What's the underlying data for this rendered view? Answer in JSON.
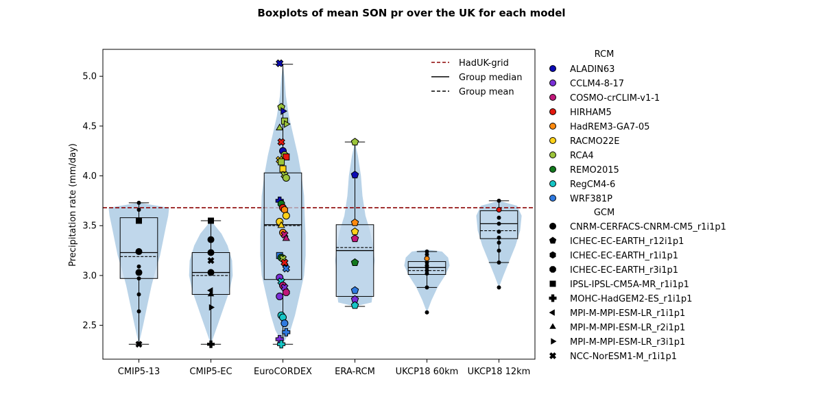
{
  "title": "Boxplots of mean SON pr over the UK for each model",
  "colors": {
    "violin": "#b9d3e8",
    "box": "#c3d9ec",
    "reference": "#8b0000",
    "rcm": {
      "ALADIN63": "#0b0bb3",
      "CCLM4-8-17": "#7a2fd6",
      "COSMO-crCLIM-v1-1": "#c0187a",
      "HIRHAM5": "#e3180f",
      "HadREM3-GA7-05": "#ff8a0e",
      "RACMO22E": "#ffd21a",
      "RCA4": "#9cc43b",
      "REMO2015": "#13781e",
      "RegCM4-6": "#16c6c6",
      "WRF381P": "#2f7ae0"
    }
  },
  "legend_lines": [
    {
      "label": "HadUK-grid",
      "style": "dashed",
      "color": "#8b0000"
    },
    {
      "label": "Group median",
      "style": "solid",
      "color": "#000000"
    },
    {
      "label": "Group mean",
      "style": "dashed",
      "color": "#000000"
    }
  ],
  "legend_rcm": {
    "title": "RCM",
    "items": [
      "ALADIN63",
      "CCLM4-8-17",
      "COSMO-crCLIM-v1-1",
      "HIRHAM5",
      "HadREM3-GA7-05",
      "RACMO22E",
      "RCA4",
      "REMO2015",
      "RegCM4-6",
      "WRF381P"
    ]
  },
  "legend_gcm": {
    "title": "GCM",
    "items": [
      {
        "label": "CNRM-CERFACS-CNRM-CM5_r1i1p1",
        "marker": "circle"
      },
      {
        "label": "ICHEC-EC-EARTH_r12i1p1",
        "marker": "pentagon"
      },
      {
        "label": "ICHEC-EC-EARTH_r1i1p1",
        "marker": "hexagon"
      },
      {
        "label": "ICHEC-EC-EARTH_r3i1p1",
        "marker": "octagon"
      },
      {
        "label": "IPSL-IPSL-CM5A-MR_r1i1p1",
        "marker": "square"
      },
      {
        "label": "MOHC-HadGEM2-ES_r1i1p1",
        "marker": "plus"
      },
      {
        "label": "MPI-M-MPI-ESM-LR_r1i1p1",
        "marker": "tri-left"
      },
      {
        "label": "MPI-M-MPI-ESM-LR_r2i1p1",
        "marker": "tri-up"
      },
      {
        "label": "MPI-M-MPI-ESM-LR_r3i1p1",
        "marker": "tri-right"
      },
      {
        "label": "NCC-NorESM1-M_r1i1p1",
        "marker": "x"
      }
    ]
  },
  "chart_data": {
    "type": "boxplot",
    "title": "Boxplots of mean SON pr over the UK for each model",
    "ylabel": "Precipitation rate (mm/day)",
    "xlabel": "",
    "ylim": [
      2.16,
      5.27
    ],
    "yticks": [
      2.5,
      3.0,
      3.5,
      4.0,
      4.5,
      5.0
    ],
    "ytick_labels": [
      "2.5",
      "3.0",
      "3.5",
      "4.0",
      "4.5",
      "5.0"
    ],
    "grid": false,
    "reference": {
      "name": "HadUK-grid",
      "value": 3.68
    },
    "categories": [
      "CMIP5-13",
      "CMIP5-EC",
      "EuroCORDEX",
      "ERA-RCM",
      "UKCP18 60km",
      "UKCP18 12km"
    ],
    "groups": [
      {
        "name": "CMIP5-13",
        "stats": {
          "min": 2.31,
          "q1": 2.97,
          "median": 3.23,
          "mean": 3.19,
          "q3": 3.58,
          "max": 3.73
        },
        "violin": [
          [
            2.31,
            0.0
          ],
          [
            2.5,
            0.14
          ],
          [
            2.7,
            0.28
          ],
          [
            2.9,
            0.42
          ],
          [
            3.05,
            0.55
          ],
          [
            3.2,
            0.7
          ],
          [
            3.35,
            0.8
          ],
          [
            3.5,
            0.9
          ],
          [
            3.6,
            0.97
          ],
          [
            3.68,
            1.0
          ],
          [
            3.73,
            0.0
          ]
        ],
        "points": [
          {
            "y": 3.73,
            "rcm": null,
            "gcm": "circle-small"
          },
          {
            "y": 3.66,
            "rcm": null,
            "gcm": "circle-small"
          },
          {
            "y": 3.55,
            "rcm": null,
            "gcm": "square"
          },
          {
            "y": 3.24,
            "rcm": null,
            "gcm": "circle"
          },
          {
            "y": 3.09,
            "rcm": null,
            "gcm": "circle-small"
          },
          {
            "y": 3.03,
            "rcm": null,
            "gcm": "circle"
          },
          {
            "y": 2.97,
            "rcm": null,
            "gcm": "circle-small"
          },
          {
            "y": 2.81,
            "rcm": null,
            "gcm": "circle-small"
          },
          {
            "y": 2.64,
            "rcm": null,
            "gcm": "circle-small"
          },
          {
            "y": 2.31,
            "rcm": null,
            "gcm": "x"
          }
        ]
      },
      {
        "name": "CMIP5-EC",
        "stats": {
          "min": 2.31,
          "q1": 2.81,
          "median": 3.03,
          "mean": 3.0,
          "q3": 3.23,
          "max": 3.55
        },
        "violin": [
          [
            2.31,
            0.0
          ],
          [
            2.5,
            0.22
          ],
          [
            2.7,
            0.45
          ],
          [
            2.85,
            0.62
          ],
          [
            3.0,
            0.72
          ],
          [
            3.15,
            0.7
          ],
          [
            3.3,
            0.55
          ],
          [
            3.42,
            0.35
          ],
          [
            3.55,
            0.0
          ]
        ],
        "points": [
          {
            "y": 3.55,
            "rcm": null,
            "gcm": "square"
          },
          {
            "y": 3.36,
            "rcm": null,
            "gcm": "circle"
          },
          {
            "y": 3.23,
            "rcm": null,
            "gcm": "circle"
          },
          {
            "y": 3.15,
            "rcm": null,
            "gcm": "x"
          },
          {
            "y": 3.03,
            "rcm": null,
            "gcm": "circle"
          },
          {
            "y": 2.85,
            "rcm": null,
            "gcm": "tri-left"
          },
          {
            "y": 2.81,
            "rcm": null,
            "gcm": "tri-up"
          },
          {
            "y": 2.68,
            "rcm": null,
            "gcm": "tri-right"
          },
          {
            "y": 2.31,
            "rcm": null,
            "gcm": "plus"
          }
        ]
      },
      {
        "name": "EuroCORDEX",
        "stats": {
          "min": 2.31,
          "q1": 2.96,
          "median": 3.51,
          "mean": 3.5,
          "q3": 4.03,
          "max": 5.12
        },
        "violin": [
          [
            2.31,
            0.0
          ],
          [
            2.45,
            0.25
          ],
          [
            2.6,
            0.4
          ],
          [
            2.8,
            0.55
          ],
          [
            3.0,
            0.7
          ],
          [
            3.2,
            0.75
          ],
          [
            3.4,
            0.75
          ],
          [
            3.6,
            0.72
          ],
          [
            3.8,
            0.7
          ],
          [
            4.0,
            0.62
          ],
          [
            4.2,
            0.5
          ],
          [
            4.4,
            0.35
          ],
          [
            4.6,
            0.2
          ],
          [
            4.8,
            0.1
          ],
          [
            5.0,
            0.05
          ],
          [
            5.12,
            0.0
          ]
        ],
        "points": [
          {
            "y": 5.13,
            "rcm": "ALADIN63",
            "gcm": "x"
          },
          {
            "y": 4.69,
            "rcm": "RCA4",
            "gcm": "pentagon"
          },
          {
            "y": 4.65,
            "rcm": "ALADIN63",
            "gcm": "tri-right"
          },
          {
            "y": 4.55,
            "rcm": "RCA4",
            "gcm": "square"
          },
          {
            "y": 4.52,
            "rcm": "RCA4",
            "gcm": "tri-right"
          },
          {
            "y": 4.48,
            "rcm": "RCA4",
            "gcm": "tri-up"
          },
          {
            "y": 4.34,
            "rcm": "HIRHAM5",
            "gcm": "x"
          },
          {
            "y": 4.25,
            "rcm": "ALADIN63",
            "gcm": "circle"
          },
          {
            "y": 4.21,
            "rcm": "RCA4",
            "gcm": "octagon"
          },
          {
            "y": 4.19,
            "rcm": "HIRHAM5",
            "gcm": "square"
          },
          {
            "y": 4.16,
            "rcm": "RACMO22E",
            "gcm": "x"
          },
          {
            "y": 4.14,
            "rcm": "RCA4",
            "gcm": "square"
          },
          {
            "y": 4.07,
            "rcm": "RACMO22E",
            "gcm": "square"
          },
          {
            "y": 4.01,
            "rcm": "RCA4",
            "gcm": "x"
          },
          {
            "y": 3.98,
            "rcm": "RCA4",
            "gcm": "circle"
          },
          {
            "y": 3.75,
            "rcm": "ALADIN63",
            "gcm": "plus"
          },
          {
            "y": 3.72,
            "rcm": "REMO2015",
            "gcm": "octagon"
          },
          {
            "y": 3.68,
            "rcm": "HIRHAM5",
            "gcm": "circle"
          },
          {
            "y": 3.66,
            "rcm": "HadREM3-GA7-05",
            "gcm": "hexagon"
          },
          {
            "y": 3.6,
            "rcm": "RACMO22E",
            "gcm": "circle"
          },
          {
            "y": 3.54,
            "rcm": "RACMO22E",
            "gcm": "circle"
          },
          {
            "y": 3.5,
            "rcm": "RACMO22E",
            "gcm": "tri-up"
          },
          {
            "y": 3.43,
            "rcm": "HadREM3-GA7-05",
            "gcm": "circle"
          },
          {
            "y": 3.41,
            "rcm": "COSMO-crCLIM-v1-1",
            "gcm": "x"
          },
          {
            "y": 3.37,
            "rcm": "COSMO-crCLIM-v1-1",
            "gcm": "tri-up"
          },
          {
            "y": 3.2,
            "rcm": "WRF381P",
            "gcm": "square"
          },
          {
            "y": 3.18,
            "rcm": "REMO2015",
            "gcm": "circle"
          },
          {
            "y": 3.17,
            "rcm": "RCA4",
            "gcm": "x"
          },
          {
            "y": 3.13,
            "rcm": "HIRHAM5",
            "gcm": "x"
          },
          {
            "y": 3.07,
            "rcm": "WRF381P",
            "gcm": "x"
          },
          {
            "y": 2.98,
            "rcm": "CCLM4-8-17",
            "gcm": "circle"
          },
          {
            "y": 2.94,
            "rcm": "RegCM4-6",
            "gcm": "x"
          },
          {
            "y": 2.9,
            "rcm": "COSMO-crCLIM-v1-1",
            "gcm": "circle"
          },
          {
            "y": 2.88,
            "rcm": "CCLM4-8-17",
            "gcm": "x"
          },
          {
            "y": 2.83,
            "rcm": "COSMO-crCLIM-v1-1",
            "gcm": "octagon"
          },
          {
            "y": 2.79,
            "rcm": "CCLM4-8-17",
            "gcm": "circle"
          },
          {
            "y": 2.6,
            "rcm": "RegCM4-6",
            "gcm": "circle"
          },
          {
            "y": 2.58,
            "rcm": "RegCM4-6",
            "gcm": "circle"
          },
          {
            "y": 2.52,
            "rcm": "WRF381P",
            "gcm": "circle"
          },
          {
            "y": 2.43,
            "rcm": "WRF381P",
            "gcm": "plus"
          },
          {
            "y": 2.36,
            "rcm": "CCLM4-8-17",
            "gcm": "plus"
          },
          {
            "y": 2.31,
            "rcm": "RegCM4-6",
            "gcm": "plus"
          }
        ]
      },
      {
        "name": "ERA-RCM",
        "stats": {
          "min": 2.69,
          "q1": 2.79,
          "median": 3.25,
          "mean": 3.28,
          "q3": 3.51,
          "max": 4.34
        },
        "violin": [
          [
            2.69,
            0.0
          ],
          [
            2.73,
            0.55
          ],
          [
            2.85,
            0.6
          ],
          [
            3.0,
            0.6
          ],
          [
            3.15,
            0.65
          ],
          [
            3.3,
            0.6
          ],
          [
            3.45,
            0.5
          ],
          [
            3.6,
            0.35
          ],
          [
            3.8,
            0.25
          ],
          [
            4.0,
            0.2
          ],
          [
            4.2,
            0.1
          ],
          [
            4.34,
            0.0
          ]
        ],
        "points": [
          {
            "y": 4.34,
            "rcm": "RCA4",
            "gcm": "pentagon"
          },
          {
            "y": 4.01,
            "rcm": "ALADIN63",
            "gcm": "pentagon"
          },
          {
            "y": 3.53,
            "rcm": "HadREM3-GA7-05",
            "gcm": "pentagon"
          },
          {
            "y": 3.44,
            "rcm": "RACMO22E",
            "gcm": "pentagon"
          },
          {
            "y": 3.37,
            "rcm": "COSMO-crCLIM-v1-1",
            "gcm": "pentagon"
          },
          {
            "y": 3.13,
            "rcm": "REMO2015",
            "gcm": "pentagon"
          },
          {
            "y": 2.85,
            "rcm": "WRF381P",
            "gcm": "pentagon"
          },
          {
            "y": 2.76,
            "rcm": "CCLM4-8-17",
            "gcm": "pentagon"
          },
          {
            "y": 2.7,
            "rcm": "RegCM4-6",
            "gcm": "pentagon"
          }
        ]
      },
      {
        "name": "UKCP18 60km",
        "stats": {
          "min": 2.88,
          "q1": 3.01,
          "median": 3.08,
          "mean": 3.05,
          "q3": 3.14,
          "max": 3.24
        },
        "violin": [
          [
            2.63,
            0.0
          ],
          [
            2.75,
            0.15
          ],
          [
            2.88,
            0.35
          ],
          [
            3.0,
            0.6
          ],
          [
            3.1,
            0.75
          ],
          [
            3.18,
            0.7
          ],
          [
            3.24,
            0.5
          ],
          [
            3.26,
            0.0
          ]
        ],
        "points": [
          {
            "y": 3.24,
            "rcm": null,
            "gcm": "circle-small"
          },
          {
            "y": 3.21,
            "rcm": null,
            "gcm": "circle-small"
          },
          {
            "y": 3.17,
            "rcm": "HadREM3-GA7-05",
            "gcm": "circle-small"
          },
          {
            "y": 3.13,
            "rcm": null,
            "gcm": "circle-small"
          },
          {
            "y": 3.1,
            "rcm": null,
            "gcm": "circle-small"
          },
          {
            "y": 3.08,
            "rcm": null,
            "gcm": "circle-small"
          },
          {
            "y": 3.05,
            "rcm": null,
            "gcm": "circle-small"
          },
          {
            "y": 3.02,
            "rcm": null,
            "gcm": "circle-small"
          },
          {
            "y": 2.88,
            "rcm": null,
            "gcm": "circle-small"
          },
          {
            "y": 2.63,
            "rcm": null,
            "gcm": "circle-small"
          }
        ]
      },
      {
        "name": "UKCP18 12km",
        "stats": {
          "min": 3.13,
          "q1": 3.37,
          "median": 3.52,
          "mean": 3.45,
          "q3": 3.65,
          "max": 3.75
        },
        "violin": [
          [
            2.88,
            0.0
          ],
          [
            3.0,
            0.15
          ],
          [
            3.15,
            0.35
          ],
          [
            3.3,
            0.55
          ],
          [
            3.45,
            0.7
          ],
          [
            3.6,
            0.75
          ],
          [
            3.7,
            0.6
          ],
          [
            3.75,
            0.0
          ]
        ],
        "points": [
          {
            "y": 3.75,
            "rcm": null,
            "gcm": "circle-small"
          },
          {
            "y": 3.66,
            "rcm": "HIRHAM5",
            "gcm": "circle-small"
          },
          {
            "y": 3.58,
            "rcm": null,
            "gcm": "circle-small"
          },
          {
            "y": 3.52,
            "rcm": null,
            "gcm": "circle-small"
          },
          {
            "y": 3.44,
            "rcm": null,
            "gcm": "circle-small"
          },
          {
            "y": 3.38,
            "rcm": null,
            "gcm": "circle-small"
          },
          {
            "y": 3.33,
            "rcm": null,
            "gcm": "circle-small"
          },
          {
            "y": 3.25,
            "rcm": null,
            "gcm": "circle-small"
          },
          {
            "y": 3.13,
            "rcm": null,
            "gcm": "circle-small"
          },
          {
            "y": 2.88,
            "rcm": null,
            "gcm": "circle-small"
          }
        ]
      }
    ]
  }
}
